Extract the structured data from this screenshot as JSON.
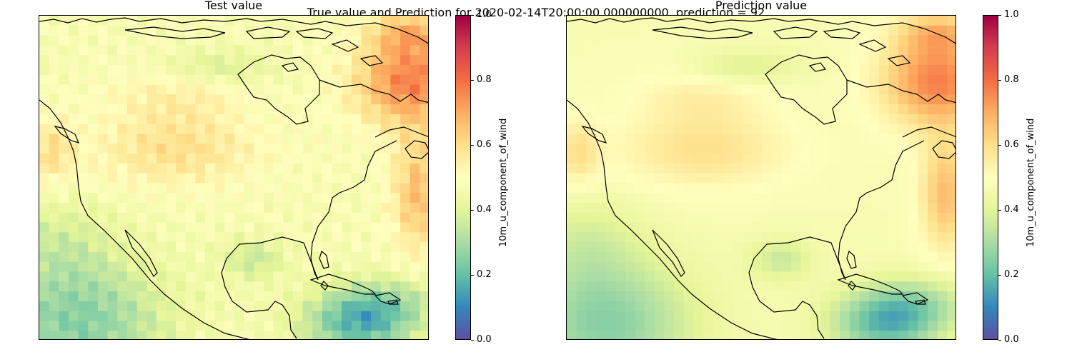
{
  "figure": {
    "suptitle": "True value and Prediction for 2020-02-14T20:00:00.000000000, prediction = 92"
  },
  "chart_data": [
    {
      "type": "heatmap",
      "title": "Test value",
      "colorbar_label": "10m_u_component_of_wind",
      "colorbar_ticks": [
        "0.0",
        "0.2",
        "0.4",
        "0.6",
        "0.8",
        "1.0"
      ],
      "vmin": 0.0,
      "vmax": 1.0,
      "colormap": "Spectral_r",
      "grid": false,
      "map_region": "North America",
      "pixelated": true
    },
    {
      "type": "heatmap",
      "title": "Prediction value",
      "colorbar_label": "10m_u_component_of_wind",
      "colorbar_ticks": [
        "0.0",
        "0.2",
        "0.4",
        "0.6",
        "0.8",
        "1.0"
      ],
      "vmin": 0.0,
      "vmax": 1.0,
      "colormap": "Spectral_r",
      "grid": false,
      "map_region": "North America",
      "pixelated": false
    }
  ]
}
